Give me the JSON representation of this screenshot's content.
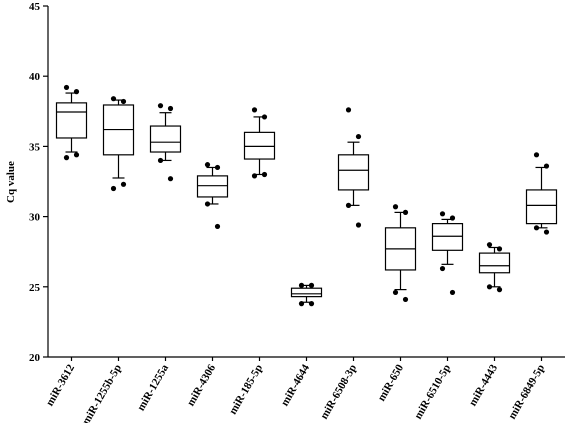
{
  "chart_data": {
    "type": "box",
    "y_label": "Cq value",
    "categories": [
      "miR-3612",
      "miR-1255b-5p",
      "miR-1255a",
      "miR-4306",
      "miR-185-5p",
      "miR-4644",
      "miR-6508-3p",
      "miR-650",
      "miR-6510-5p",
      "miR-4443",
      "miR-6849-5p"
    ],
    "whisker_low": [
      34.6,
      32.75,
      34.0,
      30.9,
      33.0,
      23.9,
      30.8,
      24.8,
      26.6,
      25.0,
      29.2
    ],
    "q1": [
      35.6,
      34.4,
      34.6,
      31.4,
      34.1,
      24.3,
      31.9,
      26.2,
      27.6,
      26.0,
      29.5
    ],
    "median": [
      37.45,
      36.2,
      35.3,
      32.2,
      35.0,
      24.5,
      33.3,
      27.7,
      28.6,
      26.5,
      30.8
    ],
    "q3": [
      38.1,
      37.95,
      36.45,
      32.9,
      36.0,
      24.9,
      34.4,
      29.2,
      29.5,
      27.4,
      31.9
    ],
    "whisker_high": [
      38.8,
      38.3,
      37.4,
      33.5,
      37.1,
      25.1,
      35.3,
      30.3,
      29.8,
      27.8,
      33.5
    ],
    "outliers": [
      [
        39.2,
        38.9,
        34.2,
        34.4
      ],
      [
        38.4,
        38.2,
        32.0,
        32.3
      ],
      [
        37.9,
        37.7,
        34.0,
        32.7
      ],
      [
        33.7,
        33.5,
        30.9,
        29.3
      ],
      [
        37.6,
        37.1,
        32.9,
        33.0
      ],
      [
        25.1,
        25.1,
        23.8,
        23.8
      ],
      [
        37.6,
        35.7,
        30.8,
        29.4
      ],
      [
        30.7,
        30.3,
        24.6,
        24.1
      ],
      [
        30.2,
        29.9,
        26.3,
        24.6
      ],
      [
        28.0,
        27.7,
        25.0,
        24.8
      ],
      [
        34.4,
        33.6,
        29.2,
        28.9
      ]
    ],
    "ylim": [
      20,
      45
    ],
    "yticks": [
      20,
      25,
      30,
      35,
      40,
      45
    ]
  }
}
